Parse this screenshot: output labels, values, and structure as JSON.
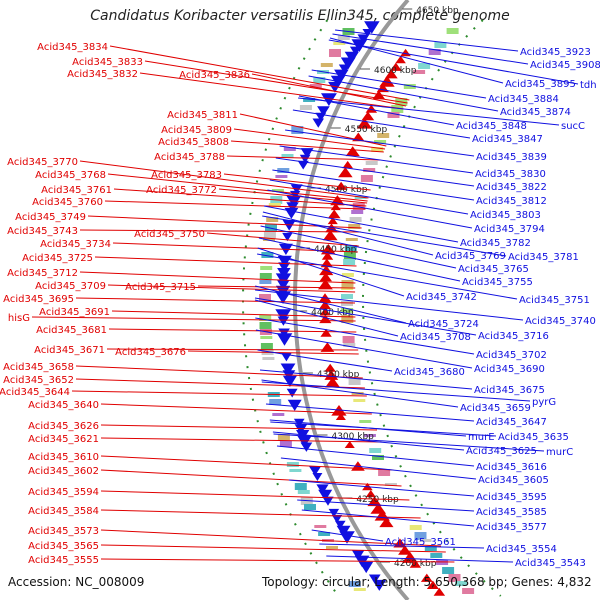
{
  "title": "Candidatus Koribacter versatilis Ellin345, complete genome",
  "accession": "Accession: NC_008009",
  "summary": "Topology: circular; Length: 5,650,368 bp; Genes: 4,832",
  "colors": {
    "left_strand": "#e00000",
    "right_strand": "#1010e0",
    "backbone": "#999999",
    "gc_dots": "#2e8b2e"
  },
  "kbp_ticks": [
    "4650 kbp",
    "4600 kbp",
    "4550 kbp",
    "4500 kbp",
    "4450 kbp",
    "4400 kbp",
    "4350 kbp",
    "4300 kbp",
    "4250 kbp",
    "4200 kbp"
  ],
  "left_labels": [
    "Acid345_3834",
    "Acid345_3833",
    "Acid345_3836",
    "Acid345_3832",
    "Acid345_3811",
    "Acid345_3809",
    "Acid345_3808",
    "Acid345_3788",
    "Acid345_3770",
    "Acid345_3783",
    "Acid345_3768",
    "Acid345_3772",
    "Acid345_3761",
    "Acid345_3760",
    "Acid345_3749",
    "Acid345_3743",
    "Acid345_3750",
    "Acid345_3734",
    "Acid345_3725",
    "Acid345_3712",
    "Acid345_3715",
    "Acid345_3709",
    "Acid345_3695",
    "Acid345_3691",
    "hisG",
    "Acid345_3681",
    "Acid345_3671",
    "Acid345_3676",
    "Acid345_3658",
    "Acid345_3652",
    "Acid345_3644",
    "Acid345_3640",
    "Acid345_3626",
    "Acid345_3621",
    "Acid345_3610",
    "Acid345_3602",
    "Acid345_3594",
    "Acid345_3584",
    "Acid345_3573",
    "Acid345_3565",
    "Acid345_3555"
  ],
  "right_labels": [
    "Acid345_3923",
    "Acid345_3908",
    "Acid345_3895",
    "tdh",
    "Acid345_3884",
    "Acid345_3874",
    "Acid345_3848",
    "sucC",
    "Acid345_3847",
    "Acid345_3839",
    "Acid345_3830",
    "Acid345_3822",
    "Acid345_3812",
    "Acid345_3803",
    "Acid345_3794",
    "Acid345_3782",
    "Acid345_3769",
    "Acid345_3781",
    "Acid345_3765",
    "Acid345_3755",
    "Acid345_3742",
    "Acid345_3751",
    "Acid345_3724",
    "Acid345_3740",
    "Acid345_3716",
    "Acid345_3708",
    "Acid345_3702",
    "Acid345_3690",
    "Acid345_3680",
    "Acid345_3675",
    "Acid345_3659",
    "pyrG",
    "Acid345_3647",
    "murE",
    "Acid345_3635",
    "Acid345_3625",
    "murC",
    "Acid345_3616",
    "Acid345_3605",
    "Acid345_3595",
    "Acid345_3585",
    "Acid345_3577",
    "Acid345_3561",
    "Acid345_3554",
    "Acid345_3543"
  ]
}
